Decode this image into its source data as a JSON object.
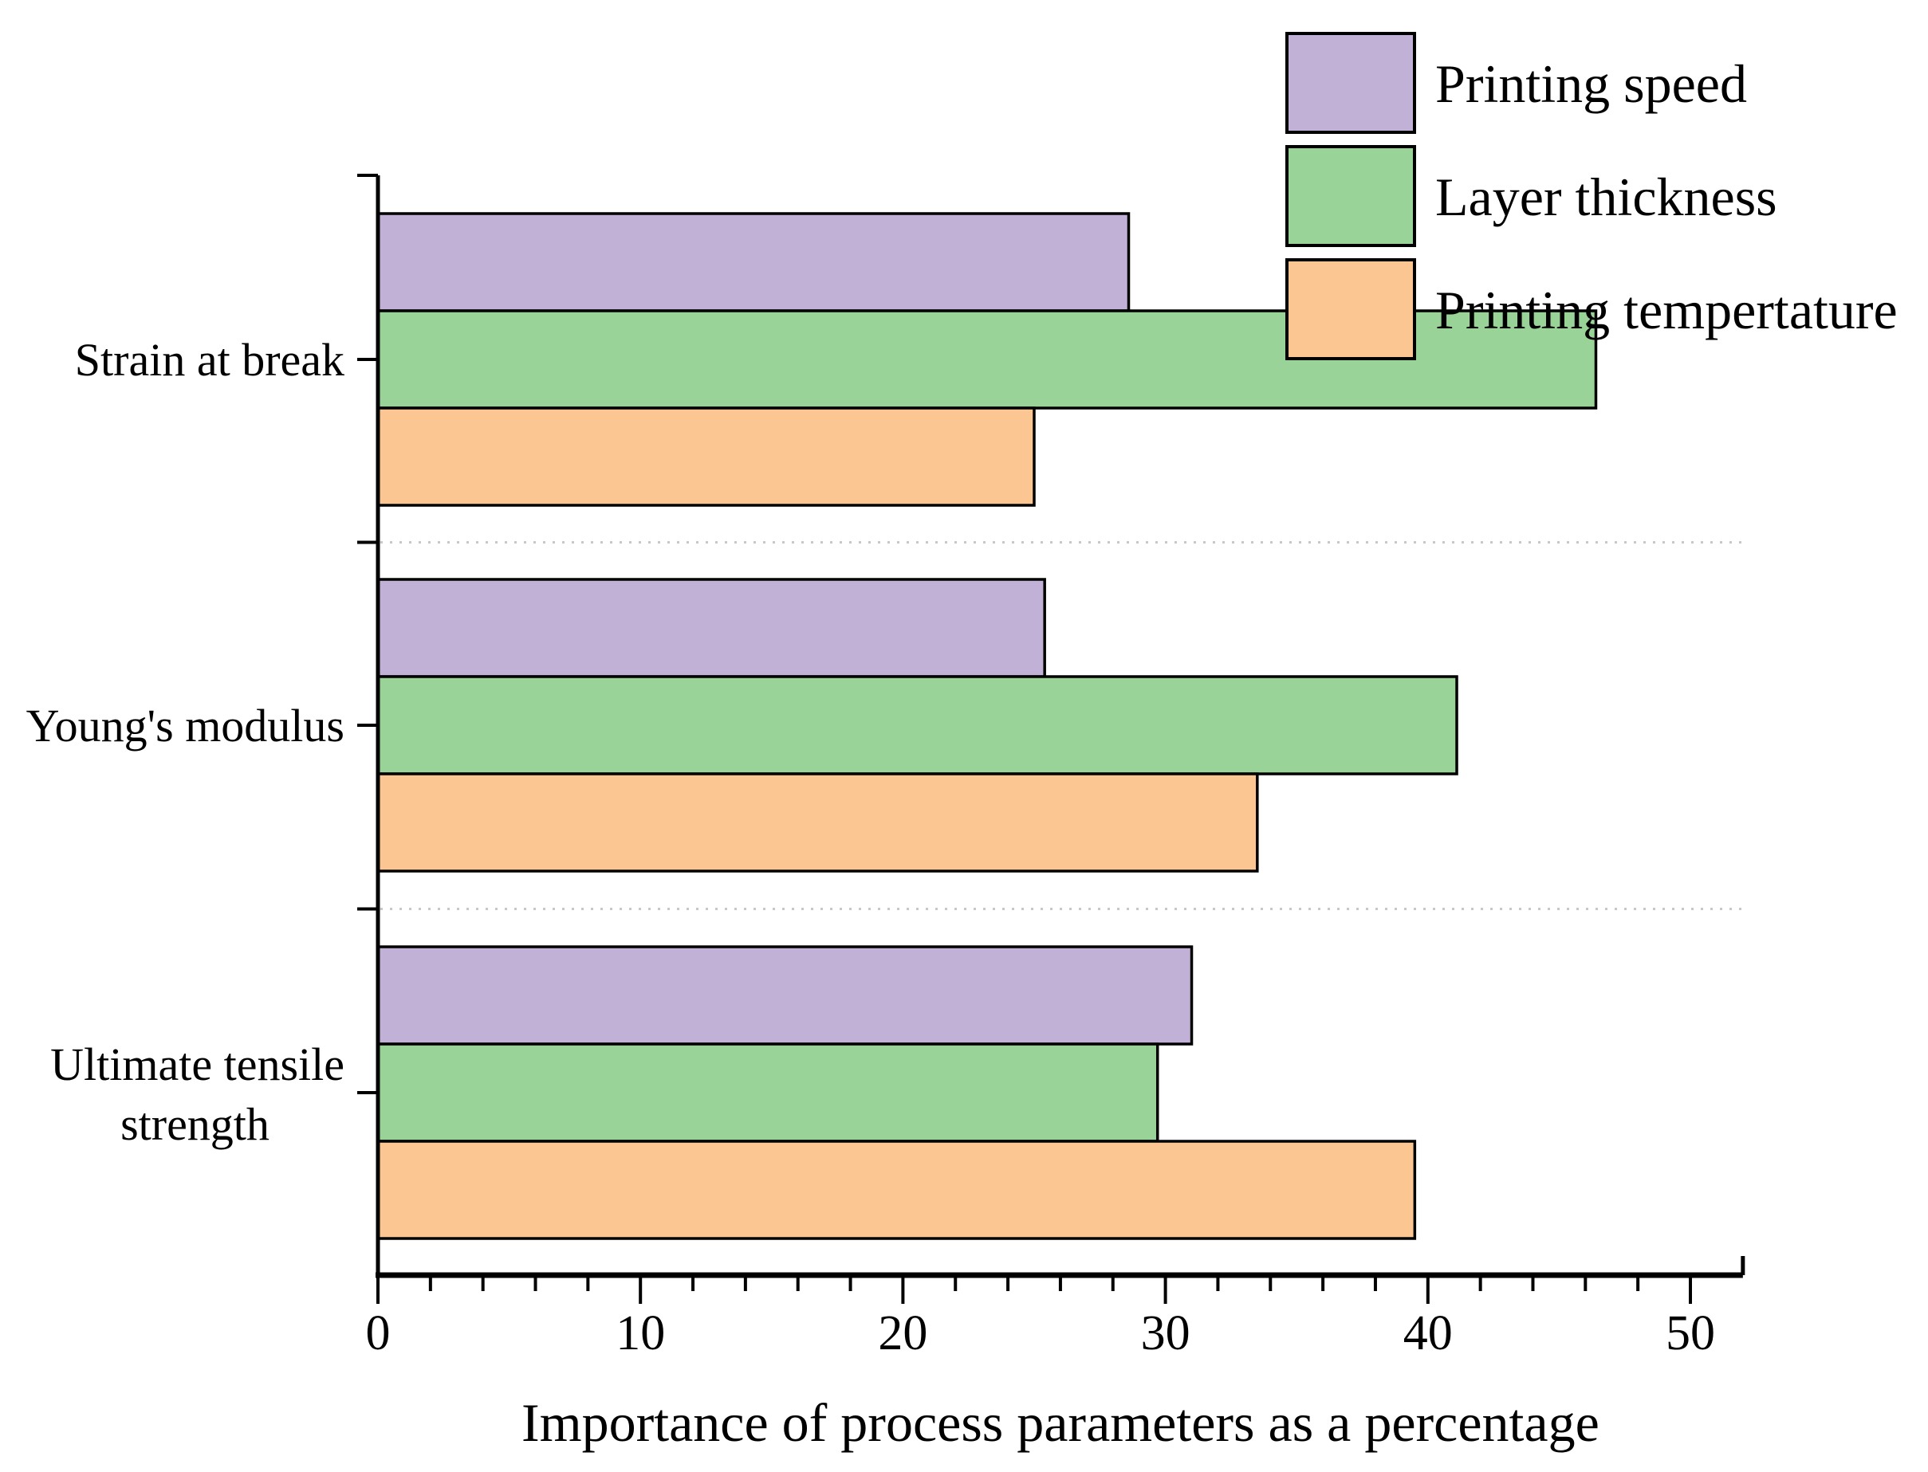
{
  "figure": {
    "background": "#ffffff",
    "text_color": "#000000"
  },
  "chart_data": {
    "type": "bar",
    "orientation": "horizontal",
    "title": "",
    "xlabel": "Importance of process parameters as a percentage",
    "ylabel": "",
    "x_axis": {
      "min": 0,
      "max": 52,
      "ticks": [
        0,
        10,
        20,
        30,
        40,
        50
      ],
      "tick_labels": [
        "0",
        "10",
        "20",
        "30",
        "40",
        "50"
      ],
      "minor_tick_step": 2
    },
    "categories": [
      "Strain at break",
      "Young's modulus",
      "Ultimate tensile strength"
    ],
    "category_lines": [
      [
        "Strain at break"
      ],
      [
        "Young's modulus"
      ],
      [
        "Ultimate tensile",
        "strength"
      ]
    ],
    "series": [
      {
        "name": "Printing speed",
        "color": "#C2B1D6",
        "values": [
          28.6,
          25.4,
          31.0
        ]
      },
      {
        "name": "Layer thickness",
        "color": "#9AD398",
        "values": [
          46.4,
          41.1,
          29.7
        ]
      },
      {
        "name": "Printing tempertature",
        "color": "#FBC691",
        "values": [
          25.0,
          33.5,
          39.5
        ]
      }
    ],
    "legend": {
      "position": "top-right"
    },
    "bar_border_color": "#000000",
    "axis_color": "#000000",
    "separator_color": "#c8c8c8",
    "separator_style": "dotted",
    "grid": false
  }
}
